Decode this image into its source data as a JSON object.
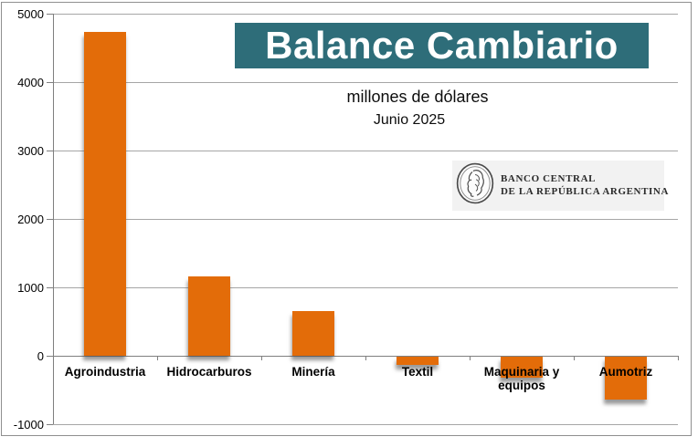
{
  "page": {
    "title": "Balance Cambiario",
    "subtitle": "millones de dólares",
    "period": "Junio 2025"
  },
  "logo": {
    "line1": "BANCO CENTRAL",
    "line2": "DE LA REPÚBLICA ARGENTINA"
  },
  "colors": {
    "bar": "#E36C09",
    "title_bg": "#2E6D79",
    "grid": "#A6A6A6",
    "axis": "#7F7F7F",
    "logo_bg": "#F2F2F2"
  },
  "chart_data": {
    "type": "bar",
    "title": "Balance Cambiario",
    "subtitle": "millones de dólares",
    "period": "Junio 2025",
    "unit": "millones de dólares",
    "categories": [
      "Agroindustria",
      "Hidrocarburos",
      "Minería",
      "Textil",
      "Maquinaria y equipos",
      "Aumotriz"
    ],
    "values": [
      4730,
      1160,
      650,
      -120,
      -300,
      -630
    ],
    "ylim": [
      -1000,
      5000
    ],
    "ytick_step": 1000,
    "grid": true,
    "legend": false,
    "bar_color": "#E36C09"
  }
}
